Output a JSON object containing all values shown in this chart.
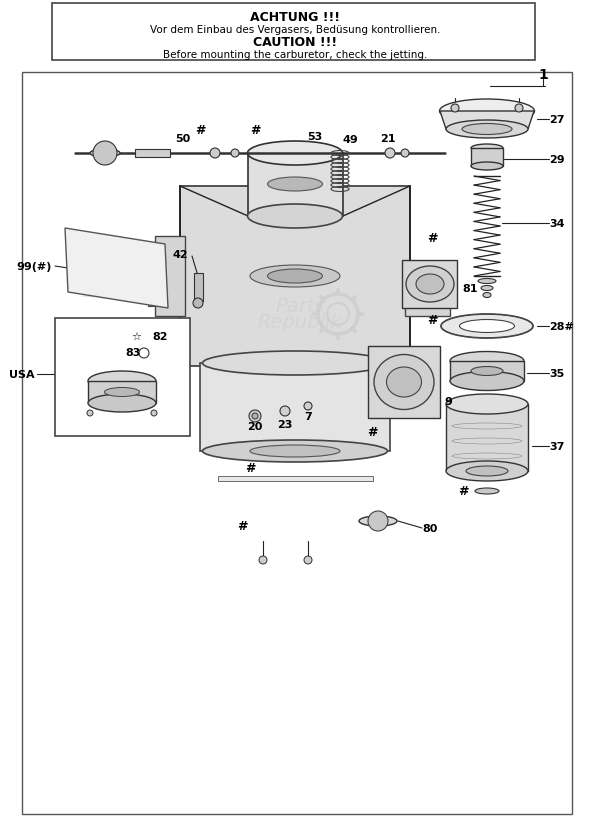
{
  "title_line1": "ACHTUNG !!!",
  "title_line2": "Vor dem Einbau des Vergasers, Bedüsung kontrollieren.",
  "title_line3": "CAUTION !!!",
  "title_line4": "Before mounting the carburetor, check the jetting.",
  "watermark": "PartsRepublik",
  "bg_color": "#ffffff",
  "border_color": "#333333"
}
